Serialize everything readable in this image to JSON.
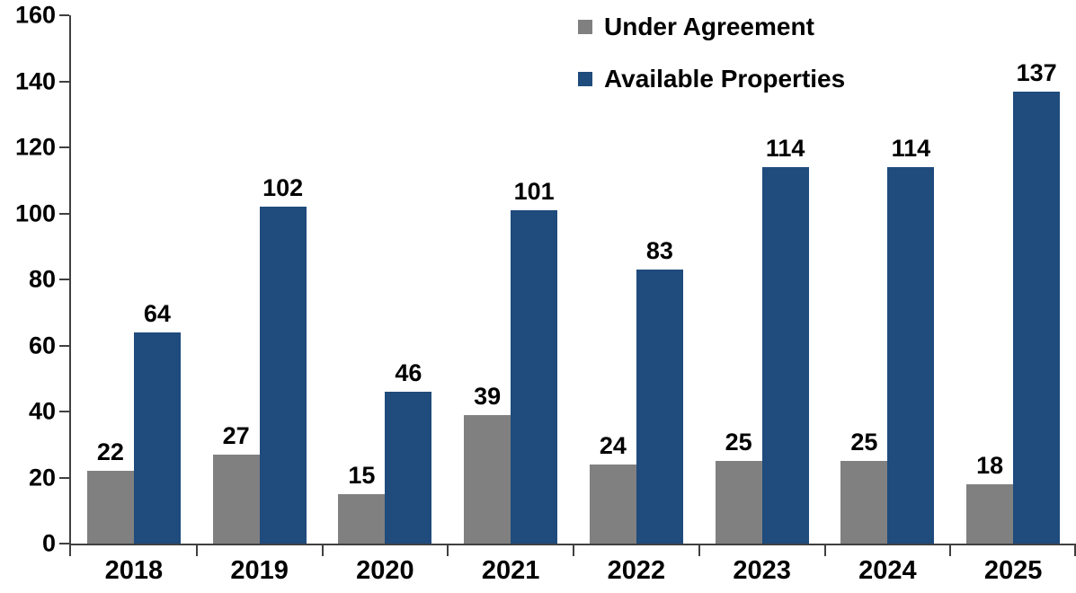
{
  "chart_data": {
    "type": "bar",
    "title": "",
    "xlabel": "",
    "ylabel": "",
    "categories": [
      "2018",
      "2019",
      "2020",
      "2021",
      "2022",
      "2023",
      "2024",
      "2025"
    ],
    "series": [
      {
        "name": "Under Agreement",
        "color": "#808080",
        "values": [
          22,
          27,
          15,
          39,
          24,
          25,
          25,
          18
        ]
      },
      {
        "name": "Available Properties",
        "color": "#1F4B7D",
        "values": [
          64,
          102,
          46,
          101,
          83,
          114,
          114,
          137
        ]
      }
    ],
    "ylim": [
      0,
      160
    ],
    "yticks": [
      0,
      20,
      40,
      60,
      80,
      100,
      120,
      140,
      160
    ],
    "grid": false,
    "data_labels": true,
    "legend_position": "top-center-inside",
    "axis_color": "#404040",
    "text_color": "#000000",
    "background_color": "#FFFFFF"
  }
}
